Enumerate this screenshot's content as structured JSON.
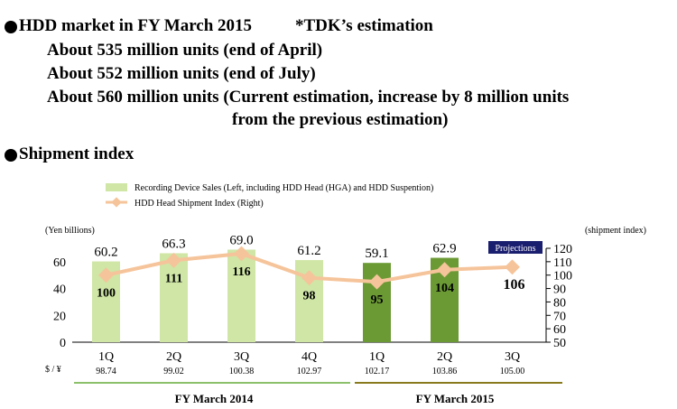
{
  "header": {
    "line1_title": "HDD market in FY March 2015",
    "line1_note": "*TDK’s estimation",
    "line2": "About 535 million units (end of April)",
    "line3": "About 552 million units (end of July)",
    "line4": "About 560 million units (Current estimation, increase by 8 million units",
    "line5": "from the previous estimation)",
    "section_title": "Shipment index"
  },
  "chart_data": {
    "type": "bar+line",
    "legend": [
      {
        "label": "Recording Device Sales (Left, including HDD Head (HGA) and HDD Suspention)",
        "color": "#cfe6a6"
      },
      {
        "label": "HDD Head Shipment Index (Right)",
        "color": "#f6c49a"
      }
    ],
    "y_left_unit": "(Yen billions)",
    "y_right_unit": "(shipment index)",
    "y_left": {
      "min": 0,
      "max": 70,
      "ticks": [
        "0",
        "20",
        "40",
        "60"
      ]
    },
    "y_right": {
      "min": 50,
      "max": 120,
      "ticks": [
        "50",
        "60",
        "70",
        "80",
        "90",
        "100",
        "110",
        "120"
      ]
    },
    "categories": [
      "1Q",
      "2Q",
      "3Q",
      "4Q",
      "1Q",
      "2Q",
      "3Q"
    ],
    "fx_label": "$ / ¥",
    "fx_rates": [
      "98.74",
      "99.02",
      "100.38",
      "102.97",
      "102.17",
      "103.86",
      "105.00"
    ],
    "bars": [
      60.2,
      66.3,
      69.0,
      61.2,
      59.1,
      62.9,
      null
    ],
    "bar_labels": [
      "60.2",
      "66.3",
      "69.0",
      "61.2",
      "59.1",
      "62.9",
      ""
    ],
    "bar_colors": [
      "#cfe6a6",
      "#cfe6a6",
      "#cfe6a6",
      "#cfe6a6",
      "#6b9a35",
      "#6b9a35",
      ""
    ],
    "line": [
      100,
      111,
      116,
      98,
      95,
      104,
      106
    ],
    "line_labels": [
      "100",
      "111",
      "116",
      "98",
      "95",
      "104",
      "106"
    ],
    "line_color": "#f6c49a",
    "projection_badge": "Projections",
    "fiscal_groups": [
      {
        "label": "FY March 2014",
        "color": "#8cc06a"
      },
      {
        "label": "FY March 2015",
        "color": "#8a7a1e"
      }
    ]
  }
}
